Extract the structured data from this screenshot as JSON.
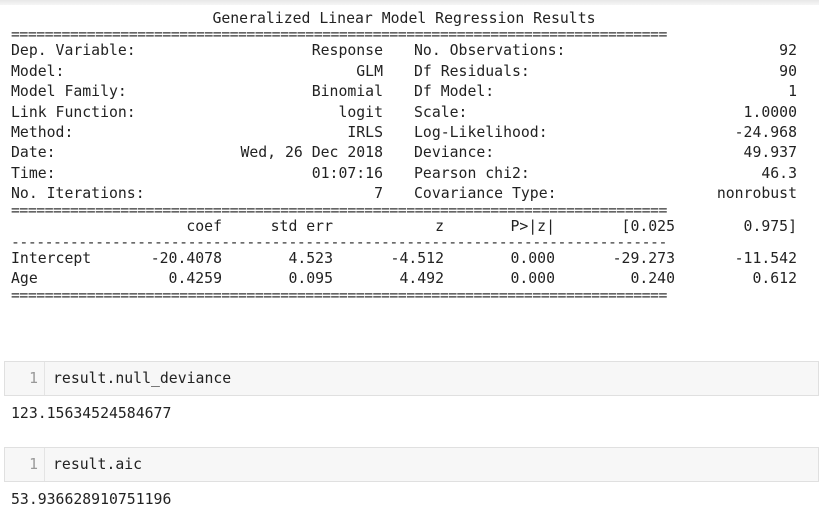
{
  "summary": {
    "title": "Generalized Linear Model Regression Results",
    "rows": [
      {
        "l1": "Dep. Variable:",
        "v1": "Response",
        "l2": "No. Observations:",
        "v2": "92"
      },
      {
        "l1": "Model:",
        "v1": "GLM",
        "l2": "Df Residuals:",
        "v2": "90"
      },
      {
        "l1": "Model Family:",
        "v1": "Binomial",
        "l2": "Df Model:",
        "v2": "1"
      },
      {
        "l1": "Link Function:",
        "v1": "logit",
        "l2": "Scale:",
        "v2": "1.0000"
      },
      {
        "l1": "Method:",
        "v1": "IRLS",
        "l2": "Log-Likelihood:",
        "v2": "-24.968"
      },
      {
        "l1": "Date:",
        "v1": "Wed, 26 Dec 2018",
        "l2": "Deviance:",
        "v2": "49.937"
      },
      {
        "l1": "Time:",
        "v1": "01:07:16",
        "l2": "Pearson chi2:",
        "v2": "46.3"
      },
      {
        "l1": "No. Iterations:",
        "v1": "7",
        "l2": "Covariance Type:",
        "v2": "nonrobust"
      }
    ],
    "coef_header": [
      "coef",
      "std err",
      "z",
      "P>|z|",
      "[0.025",
      "0.975]"
    ],
    "coef_rows": [
      {
        "name": "Intercept",
        "values": [
          "-20.4078",
          "4.523",
          "-4.512",
          "0.000",
          "-29.273",
          "-11.542"
        ]
      },
      {
        "name": "Age",
        "values": [
          "0.4259",
          "0.095",
          "4.492",
          "0.000",
          "0.240",
          "0.612"
        ]
      }
    ],
    "equals_rule": "==============================================================================",
    "dash_rule": "------------------------------------------------------------------------------"
  },
  "cells": [
    {
      "prompt": "1",
      "code": "result.null_deviance",
      "output": "123.15634524584677"
    },
    {
      "prompt": "1",
      "code": "result.aic",
      "output": "53.936628910751196"
    }
  ]
}
